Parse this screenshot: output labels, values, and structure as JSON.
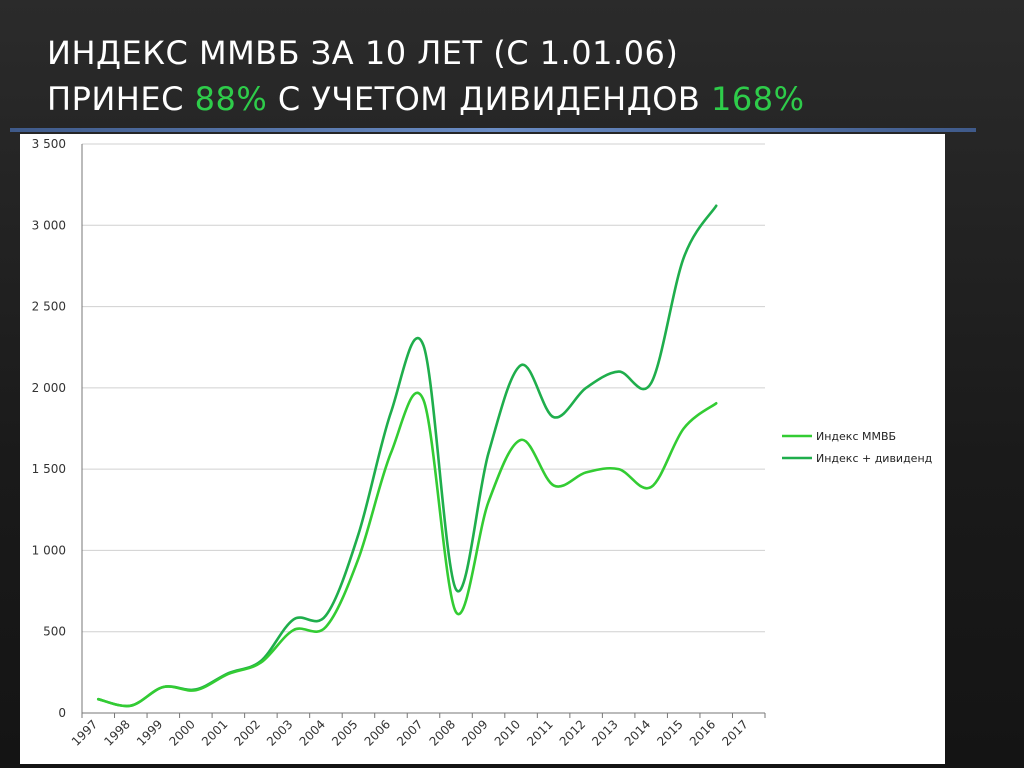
{
  "slide": {
    "title_line1": "ИНДЕКС ММВБ ЗА 10 ЛЕТ (С 1.01.06)",
    "title_line2_a": "ПРИНЕС ",
    "title_line2_pct1": "88%",
    "title_line2_b": " С УЧЕТОМ ДИВИДЕНДОВ ",
    "title_line2_pct2": "168%"
  },
  "colors": {
    "background": "#1f1f1f",
    "title": "#ffffff",
    "accent": "#2ecc4a",
    "series_index": "#33cc33",
    "series_dividend": "#1fae4c",
    "grid": "#d0d0d0"
  },
  "chart_data": {
    "type": "line",
    "title": "",
    "xlabel": "",
    "ylabel": "",
    "x": [
      "1997",
      "1998",
      "1999",
      "2000",
      "2001",
      "2002",
      "2003",
      "2004",
      "2005",
      "2006",
      "2007",
      "2008",
      "2009",
      "2010",
      "2011",
      "2012",
      "2013",
      "2014",
      "2015",
      "2016",
      "2017"
    ],
    "ylim": [
      0,
      3500
    ],
    "yticks": [
      0,
      500,
      1000,
      1500,
      2000,
      2500,
      3000,
      3500
    ],
    "ytick_labels": [
      "0",
      "500",
      "1 000",
      "1 500",
      "2 000",
      "2 500",
      "3 000",
      "3 500"
    ],
    "grid": true,
    "legend_position": "right",
    "series": [
      {
        "name": "Индекс ММВБ",
        "values": [
          85,
          45,
          160,
          140,
          240,
          310,
          510,
          530,
          950,
          1600,
          1925,
          620,
          1300,
          1680,
          1400,
          1480,
          1500,
          1390,
          1750,
          1905,
          null
        ]
      },
      {
        "name": "Индекс + дивиденд",
        "values": [
          85,
          45,
          160,
          145,
          245,
          320,
          575,
          600,
          1100,
          1850,
          2260,
          760,
          1600,
          2140,
          1820,
          2000,
          2100,
          2030,
          2800,
          3120,
          null
        ]
      }
    ]
  }
}
